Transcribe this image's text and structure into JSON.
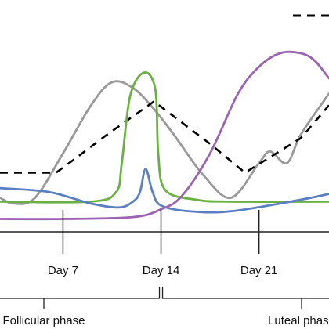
{
  "chart_data": {
    "type": "line",
    "title": "",
    "xlabel": "",
    "ylabel": "",
    "xlim": [
      2.5,
      26
    ],
    "ylim": [
      0,
      1
    ],
    "grid": false,
    "x_ticks": [
      {
        "day": 7,
        "label": "Day 7"
      },
      {
        "day": 14,
        "label": "Day 14"
      },
      {
        "day": 21,
        "label": "Day 21"
      }
    ],
    "phases": [
      {
        "label": "Follicular phase",
        "from": 2.5,
        "to": 14
      },
      {
        "label": "Luteal phase",
        "from": 14,
        "to": 26
      }
    ],
    "series": [
      {
        "color": "#999999",
        "style": "solid",
        "points": [
          [
            2.5,
            0.12
          ],
          [
            3.5,
            0.09
          ],
          [
            5,
            0.12
          ],
          [
            7,
            0.35
          ],
          [
            9,
            0.6
          ],
          [
            10.5,
            0.72
          ],
          [
            12,
            0.69
          ],
          [
            13.5,
            0.58
          ],
          [
            15,
            0.44
          ],
          [
            17,
            0.24
          ],
          [
            19,
            0.12
          ],
          [
            21,
            0.3
          ],
          [
            21.8,
            0.36
          ],
          [
            23,
            0.3
          ],
          [
            24,
            0.45
          ],
          [
            26,
            0.66
          ]
        ]
      },
      {
        "color": "#000000",
        "style": "dashed",
        "points": [
          [
            2.5,
            0.25
          ],
          [
            6.5,
            0.25
          ],
          [
            8,
            0.33
          ],
          [
            10,
            0.44
          ],
          [
            13.5,
            0.62
          ],
          [
            17.5,
            0.4
          ],
          [
            20,
            0.25
          ],
          [
            24,
            0.43
          ],
          [
            26,
            0.6
          ]
        ]
      },
      {
        "color": "#6cb043",
        "style": "solid",
        "points": [
          [
            2.5,
            0.1
          ],
          [
            9,
            0.1
          ],
          [
            10.8,
            0.15
          ],
          [
            11.2,
            0.3
          ],
          [
            11.8,
            0.65
          ],
          [
            12.8,
            0.77
          ],
          [
            13.6,
            0.68
          ],
          [
            13.8,
            0.35
          ],
          [
            14.3,
            0.16
          ],
          [
            16.5,
            0.11
          ],
          [
            19,
            0.1
          ],
          [
            26,
            0.1
          ]
        ]
      },
      {
        "color": "#5b80c2",
        "style": "solid",
        "points": [
          [
            2.5,
            0.17
          ],
          [
            6,
            0.15
          ],
          [
            9,
            0.09
          ],
          [
            11,
            0.07
          ],
          [
            12,
            0.1
          ],
          [
            12.5,
            0.15
          ],
          [
            12.9,
            0.27
          ],
          [
            13.4,
            0.15
          ],
          [
            14,
            0.08
          ],
          [
            16,
            0.05
          ],
          [
            19,
            0.05
          ],
          [
            24,
            0.11
          ],
          [
            26,
            0.14
          ]
        ]
      },
      {
        "color": "#9b64b1",
        "style": "solid",
        "points": [
          [
            2.5,
            0.01
          ],
          [
            7,
            0.01
          ],
          [
            12,
            0.02
          ],
          [
            14,
            0.06
          ],
          [
            15.5,
            0.13
          ],
          [
            17.5,
            0.35
          ],
          [
            19.5,
            0.66
          ],
          [
            21,
            0.8
          ],
          [
            22.5,
            0.87
          ],
          [
            24,
            0.87
          ],
          [
            25,
            0.83
          ],
          [
            26,
            0.74
          ]
        ]
      }
    ]
  }
}
